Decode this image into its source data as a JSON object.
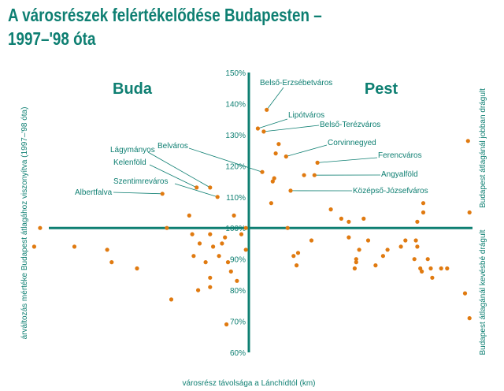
{
  "title": {
    "line1": "A városrészek felértékelődése Budapesten –",
    "line2": "1997–'98 óta"
  },
  "colors": {
    "accent": "#0e7f72",
    "point": "#e07a10"
  },
  "chart_data": {
    "type": "scatter",
    "title": "A városrészek felértékelődése Budapesten – 1997–'98 óta",
    "xlabel": "városrész távolsága a Lánchídtól (km)",
    "ylabel": "árváltozás mértéke Budapest átlagához viszonyítva (1997–'98 óta)",
    "right_label_top": "Budapest átlagánál jobban drágult",
    "right_label_bottom": "Budapest átlagánál kevésbé drágult",
    "side_labels": {
      "left": "Buda",
      "right": "Pest"
    },
    "x_scale": "Buda: negative distance (left of Lánchíd), Pest: positive distance",
    "xlim": [
      -15,
      15
    ],
    "ylim": [
      60,
      150
    ],
    "y_ticks": [
      "60%",
      "70%",
      "80%",
      "90%",
      "100%",
      "110%",
      "120%",
      "130%",
      "140%",
      "150%"
    ],
    "labeled_points": [
      {
        "name": "Belső-Erzsébetváros",
        "x": 1.2,
        "y": 138
      },
      {
        "name": "Lipótváros",
        "x": 0.6,
        "y": 132
      },
      {
        "name": "Belső-Terézváros",
        "x": 1.0,
        "y": 131
      },
      {
        "name": "Corvinnegyed",
        "x": 2.5,
        "y": 123
      },
      {
        "name": "Ferencváros",
        "x": 4.6,
        "y": 121
      },
      {
        "name": "Angyalföld",
        "x": 4.4,
        "y": 117
      },
      {
        "name": "Középső-Józsefváros",
        "x": 2.8,
        "y": 112
      },
      {
        "name": "Belváros",
        "x": 0.9,
        "y": 118
      },
      {
        "name": "Lágymányos",
        "x": -2.6,
        "y": 113
      },
      {
        "name": "Kelenföld",
        "x": -3.5,
        "y": 113
      },
      {
        "name": "Szentimreváros",
        "x": -2.1,
        "y": 110
      },
      {
        "name": "Albertfalva",
        "x": -5.8,
        "y": 111
      }
    ],
    "points": [
      {
        "x": 1.2,
        "y": 138
      },
      {
        "x": 0.6,
        "y": 132
      },
      {
        "x": 1.0,
        "y": 131
      },
      {
        "x": 2.5,
        "y": 123
      },
      {
        "x": 4.6,
        "y": 121
      },
      {
        "x": 4.4,
        "y": 117
      },
      {
        "x": 2.8,
        "y": 112
      },
      {
        "x": 0.9,
        "y": 118
      },
      {
        "x": -2.6,
        "y": 113
      },
      {
        "x": -3.5,
        "y": 113
      },
      {
        "x": -2.1,
        "y": 110
      },
      {
        "x": -5.8,
        "y": 111
      },
      {
        "x": 2.0,
        "y": 127
      },
      {
        "x": 1.8,
        "y": 124
      },
      {
        "x": 1.7,
        "y": 116
      },
      {
        "x": 1.6,
        "y": 115
      },
      {
        "x": 3.7,
        "y": 117
      },
      {
        "x": 1.5,
        "y": 108
      },
      {
        "x": 5.5,
        "y": 106
      },
      {
        "x": 6.2,
        "y": 103
      },
      {
        "x": 6.7,
        "y": 102
      },
      {
        "x": 7.7,
        "y": 103
      },
      {
        "x": 11.7,
        "y": 108
      },
      {
        "x": 11.7,
        "y": 105
      },
      {
        "x": 11.3,
        "y": 102
      },
      {
        "x": 14.8,
        "y": 105
      },
      {
        "x": 14.7,
        "y": 128
      },
      {
        "x": 14.5,
        "y": 79
      },
      {
        "x": 14.8,
        "y": 71
      },
      {
        "x": 2.6,
        "y": 100
      },
      {
        "x": 4.2,
        "y": 96
      },
      {
        "x": 6.7,
        "y": 97
      },
      {
        "x": 3.3,
        "y": 92
      },
      {
        "x": 3.0,
        "y": 91
      },
      {
        "x": 3.2,
        "y": 88
      },
      {
        "x": 8.0,
        "y": 96
      },
      {
        "x": 7.4,
        "y": 93
      },
      {
        "x": 7.2,
        "y": 90
      },
      {
        "x": 7.2,
        "y": 89
      },
      {
        "x": 7.1,
        "y": 87
      },
      {
        "x": 9.3,
        "y": 93
      },
      {
        "x": 9.0,
        "y": 91
      },
      {
        "x": 10.5,
        "y": 96
      },
      {
        "x": 10.2,
        "y": 94
      },
      {
        "x": 11.2,
        "y": 96
      },
      {
        "x": 11.3,
        "y": 94
      },
      {
        "x": 11.1,
        "y": 90
      },
      {
        "x": 11.5,
        "y": 87
      },
      {
        "x": 11.6,
        "y": 86
      },
      {
        "x": 12.0,
        "y": 90
      },
      {
        "x": 12.2,
        "y": 87
      },
      {
        "x": 12.9,
        "y": 87
      },
      {
        "x": 13.3,
        "y": 87
      },
      {
        "x": 12.3,
        "y": 84
      },
      {
        "x": 8.5,
        "y": 88
      },
      {
        "x": -14.0,
        "y": 100
      },
      {
        "x": -14.4,
        "y": 94
      },
      {
        "x": -11.7,
        "y": 94
      },
      {
        "x": -9.5,
        "y": 93
      },
      {
        "x": -9.2,
        "y": 89
      },
      {
        "x": -7.5,
        "y": 87
      },
      {
        "x": -5.5,
        "y": 100
      },
      {
        "x": -5.2,
        "y": 77
      },
      {
        "x": -4.0,
        "y": 104
      },
      {
        "x": -3.8,
        "y": 98
      },
      {
        "x": -3.7,
        "y": 91
      },
      {
        "x": -3.3,
        "y": 95
      },
      {
        "x": -2.9,
        "y": 89
      },
      {
        "x": -2.6,
        "y": 98
      },
      {
        "x": -2.6,
        "y": 84
      },
      {
        "x": -2.6,
        "y": 81
      },
      {
        "x": -2.4,
        "y": 94
      },
      {
        "x": -3.4,
        "y": 80
      },
      {
        "x": -1.6,
        "y": 97
      },
      {
        "x": -1.4,
        "y": 89
      },
      {
        "x": -1.0,
        "y": 104
      },
      {
        "x": -0.8,
        "y": 83
      },
      {
        "x": -1.2,
        "y": 86
      },
      {
        "x": -0.5,
        "y": 98
      },
      {
        "x": -0.2,
        "y": 100
      },
      {
        "x": -0.2,
        "y": 93
      },
      {
        "x": -2.0,
        "y": 91
      },
      {
        "x": -1.8,
        "y": 95
      },
      {
        "x": -1.5,
        "y": 69
      }
    ]
  }
}
